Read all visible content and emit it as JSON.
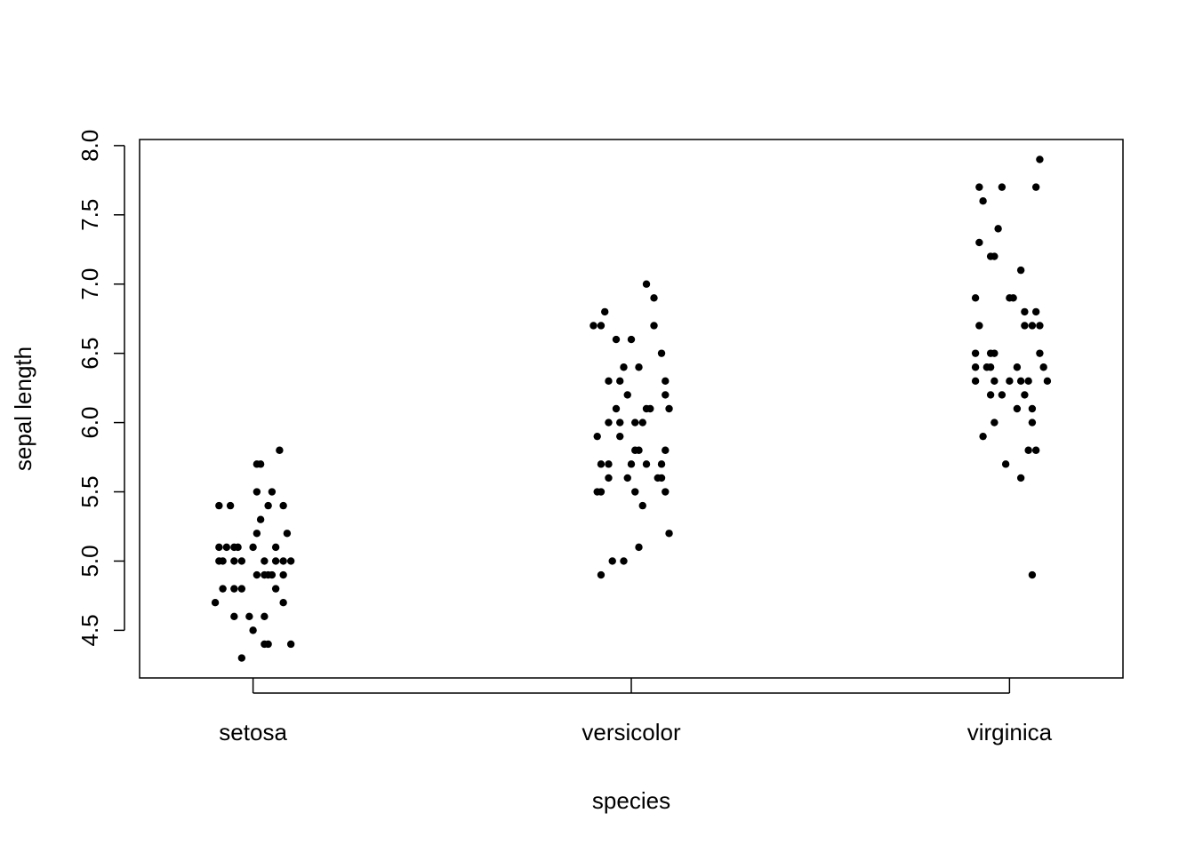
{
  "chart_data": {
    "type": "scatter",
    "title": "",
    "xlabel": "species",
    "ylabel": "sepal length",
    "categories": [
      "setosa",
      "versicolor",
      "virginica"
    ],
    "xlim": [
      0.7,
      3.3
    ],
    "ylim": [
      4.156,
      8.044
    ],
    "yticks": [
      "4.5",
      "5.0",
      "5.5",
      "6.0",
      "6.5",
      "7.0",
      "7.5",
      "8.0"
    ],
    "grid": false,
    "marker_color": "#000000",
    "series": [
      {
        "name": "setosa",
        "jitter": [
          0.07,
          0.01,
          0.02,
          0.01,
          0.05,
          -0.09,
          -0.06,
          0.04,
          0.08,
          0.02,
          0.01,
          0.09,
          -0.09,
          -0.07,
          -0.05,
          -0.04,
          0,
          0.06,
          -0.09,
          -0.08,
          -0.05,
          -0.03,
          0.03,
          0.06,
          0.08,
          0.1,
          0.01,
          0.03,
          0.04,
          0.05,
          0.08,
          -0.08,
          -0.05,
          -0.03,
          0.06,
          -0.1,
          0.08,
          -0.05,
          -0.01,
          0.03,
          0,
          0.03,
          0.04,
          0.1,
          -0.03
        ],
        "values": [
          5.8,
          5.7,
          5.7,
          5.5,
          5.5,
          5.4,
          5.4,
          5.4,
          5.4,
          5.3,
          5.2,
          5.2,
          5.1,
          5.1,
          5.1,
          5.1,
          5.1,
          5.1,
          5.0,
          5.0,
          5.0,
          5.0,
          5.0,
          5.0,
          5.0,
          5.0,
          4.9,
          4.9,
          4.9,
          4.9,
          4.9,
          4.8,
          4.8,
          4.8,
          4.8,
          4.7,
          4.7,
          4.6,
          4.6,
          4.6,
          4.5,
          4.4,
          4.4,
          4.4,
          4.3
        ]
      },
      {
        "name": "versicolor",
        "jitter": [
          0.04,
          0.06,
          -0.1,
          -0.08,
          0.06,
          -0.07,
          -0.04,
          0,
          0.08,
          -0.02,
          0.02,
          -0.06,
          -0.03,
          0.09,
          -0.01,
          0.09,
          -0.04,
          0.04,
          0.05,
          0.1,
          -0.06,
          -0.03,
          0.01,
          0.03,
          -0.09,
          -0.03,
          0.01,
          0.02,
          0.09,
          -0.08,
          -0.06,
          0,
          0.04,
          0.08,
          -0.06,
          -0.01,
          0.07,
          0.08,
          -0.09,
          -0.08,
          0.01,
          0.09,
          0.03,
          0.1,
          0.02,
          -0.05,
          -0.02,
          -0.08
        ],
        "values": [
          7.0,
          6.9,
          6.7,
          6.7,
          6.7,
          6.8,
          6.6,
          6.6,
          6.5,
          6.4,
          6.4,
          6.3,
          6.3,
          6.3,
          6.2,
          6.2,
          6.1,
          6.1,
          6.1,
          6.1,
          6.0,
          6.0,
          6.0,
          6.0,
          5.9,
          5.9,
          5.8,
          5.8,
          5.8,
          5.7,
          5.7,
          5.7,
          5.7,
          5.7,
          5.6,
          5.6,
          5.6,
          5.6,
          5.5,
          5.5,
          5.5,
          5.5,
          5.4,
          5.2,
          5.1,
          5.0,
          5.0,
          4.9
        ]
      },
      {
        "name": "virginica",
        "jitter": [
          0.08,
          -0.08,
          -0.02,
          0.07,
          -0.07,
          -0.03,
          -0.08,
          -0.05,
          -0.04,
          0.03,
          -0.09,
          0,
          0.01,
          0.04,
          0.07,
          -0.08,
          0.04,
          0.06,
          0.08,
          0.08,
          -0.09,
          -0.05,
          -0.04,
          -0.09,
          -0.06,
          -0.05,
          0.02,
          0.09,
          -0.09,
          -0.04,
          0,
          0.03,
          0.05,
          0.1,
          -0.05,
          -0.02,
          0.04,
          0.02,
          0.06,
          -0.04,
          0.06,
          -0.07,
          0.05,
          0.07,
          -0.01,
          0.03,
          0.06
        ],
        "values": [
          7.9,
          7.7,
          7.7,
          7.7,
          7.6,
          7.4,
          7.3,
          7.2,
          7.2,
          7.1,
          6.9,
          6.9,
          6.9,
          6.8,
          6.8,
          6.7,
          6.7,
          6.7,
          6.7,
          6.5,
          6.5,
          6.5,
          6.5,
          6.4,
          6.4,
          6.4,
          6.4,
          6.4,
          6.3,
          6.3,
          6.3,
          6.3,
          6.3,
          6.3,
          6.2,
          6.2,
          6.2,
          6.1,
          6.1,
          6.0,
          6.0,
          5.9,
          5.8,
          5.8,
          5.7,
          5.6,
          4.9
        ]
      }
    ]
  }
}
